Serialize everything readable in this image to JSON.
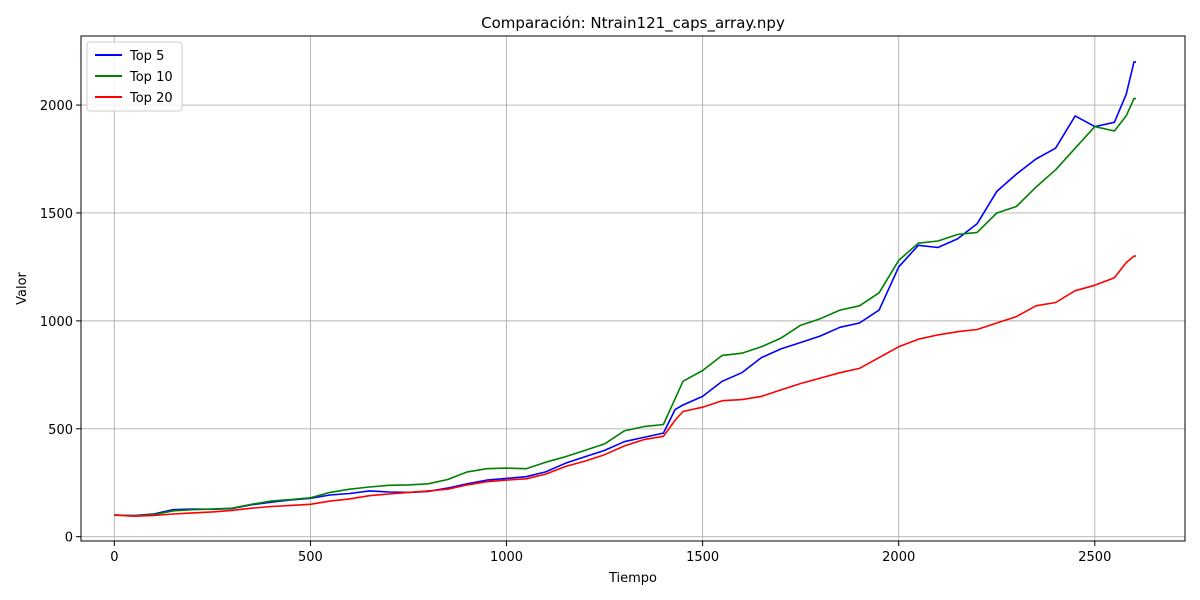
{
  "chart_data": {
    "type": "line",
    "title": "Comparación: Ntrain121_caps_array.npy",
    "xlabel": "Tiempo",
    "ylabel": "Valor",
    "xlim": [
      -85,
      2730
    ],
    "ylim": [
      -20,
      2320
    ],
    "xticks": [
      0,
      500,
      1000,
      1500,
      2000,
      2500
    ],
    "yticks": [
      0,
      500,
      1000,
      1500,
      2000
    ],
    "grid": true,
    "legend_position": "top-left",
    "series": [
      {
        "name": "Top 5",
        "color": "#0000ff",
        "x": [
          0,
          50,
          100,
          150,
          200,
          250,
          300,
          350,
          400,
          450,
          500,
          550,
          600,
          650,
          700,
          750,
          800,
          850,
          900,
          950,
          1000,
          1050,
          1100,
          1150,
          1200,
          1250,
          1300,
          1350,
          1400,
          1430,
          1450,
          1500,
          1550,
          1600,
          1650,
          1700,
          1750,
          1800,
          1850,
          1900,
          1950,
          2000,
          2050,
          2100,
          2150,
          2200,
          2250,
          2300,
          2350,
          2400,
          2450,
          2500,
          2550,
          2580,
          2600,
          2605
        ],
        "y": [
          100,
          98,
          105,
          125,
          128,
          127,
          130,
          148,
          160,
          170,
          178,
          193,
          200,
          212,
          207,
          205,
          210,
          225,
          245,
          262,
          270,
          278,
          300,
          340,
          370,
          400,
          440,
          460,
          480,
          590,
          610,
          650,
          720,
          760,
          830,
          870,
          900,
          930,
          970,
          990,
          1050,
          1250,
          1350,
          1340,
          1380,
          1450,
          1600,
          1680,
          1750,
          1800,
          1950,
          1900,
          1920,
          2050,
          2200,
          2200
        ]
      },
      {
        "name": "Top 10",
        "color": "#008000",
        "x": [
          0,
          50,
          100,
          150,
          200,
          250,
          300,
          350,
          400,
          450,
          500,
          550,
          600,
          650,
          700,
          750,
          800,
          850,
          900,
          950,
          1000,
          1050,
          1100,
          1150,
          1200,
          1250,
          1300,
          1350,
          1400,
          1430,
          1450,
          1500,
          1550,
          1600,
          1650,
          1700,
          1750,
          1800,
          1850,
          1900,
          1950,
          2000,
          2050,
          2100,
          2150,
          2200,
          2250,
          2300,
          2350,
          2400,
          2450,
          2500,
          2550,
          2580,
          2600,
          2605
        ],
        "y": [
          100,
          97,
          102,
          120,
          125,
          128,
          132,
          150,
          165,
          172,
          180,
          205,
          220,
          230,
          238,
          240,
          245,
          265,
          300,
          315,
          318,
          315,
          345,
          370,
          400,
          430,
          490,
          510,
          520,
          640,
          720,
          770,
          840,
          850,
          880,
          920,
          980,
          1010,
          1050,
          1070,
          1130,
          1280,
          1360,
          1370,
          1400,
          1410,
          1500,
          1530,
          1620,
          1700,
          1800,
          1900,
          1880,
          1950,
          2030,
          2030
        ]
      },
      {
        "name": "Top 20",
        "color": "#ff0000",
        "x": [
          0,
          50,
          100,
          150,
          200,
          250,
          300,
          350,
          400,
          450,
          500,
          550,
          600,
          650,
          700,
          750,
          800,
          850,
          900,
          950,
          1000,
          1050,
          1100,
          1150,
          1200,
          1250,
          1300,
          1350,
          1400,
          1430,
          1450,
          1500,
          1550,
          1600,
          1650,
          1700,
          1750,
          1800,
          1850,
          1900,
          1950,
          2000,
          2050,
          2100,
          2150,
          2200,
          2250,
          2300,
          2350,
          2400,
          2450,
          2500,
          2550,
          2580,
          2600,
          2605
        ],
        "y": [
          100,
          95,
          98,
          105,
          110,
          115,
          122,
          132,
          140,
          145,
          150,
          165,
          175,
          190,
          198,
          205,
          212,
          220,
          240,
          255,
          262,
          268,
          290,
          325,
          350,
          380,
          420,
          450,
          465,
          540,
          580,
          600,
          630,
          635,
          650,
          680,
          710,
          735,
          760,
          780,
          830,
          880,
          915,
          935,
          950,
          960,
          990,
          1020,
          1070,
          1085,
          1140,
          1165,
          1200,
          1270,
          1300,
          1300
        ]
      }
    ]
  }
}
